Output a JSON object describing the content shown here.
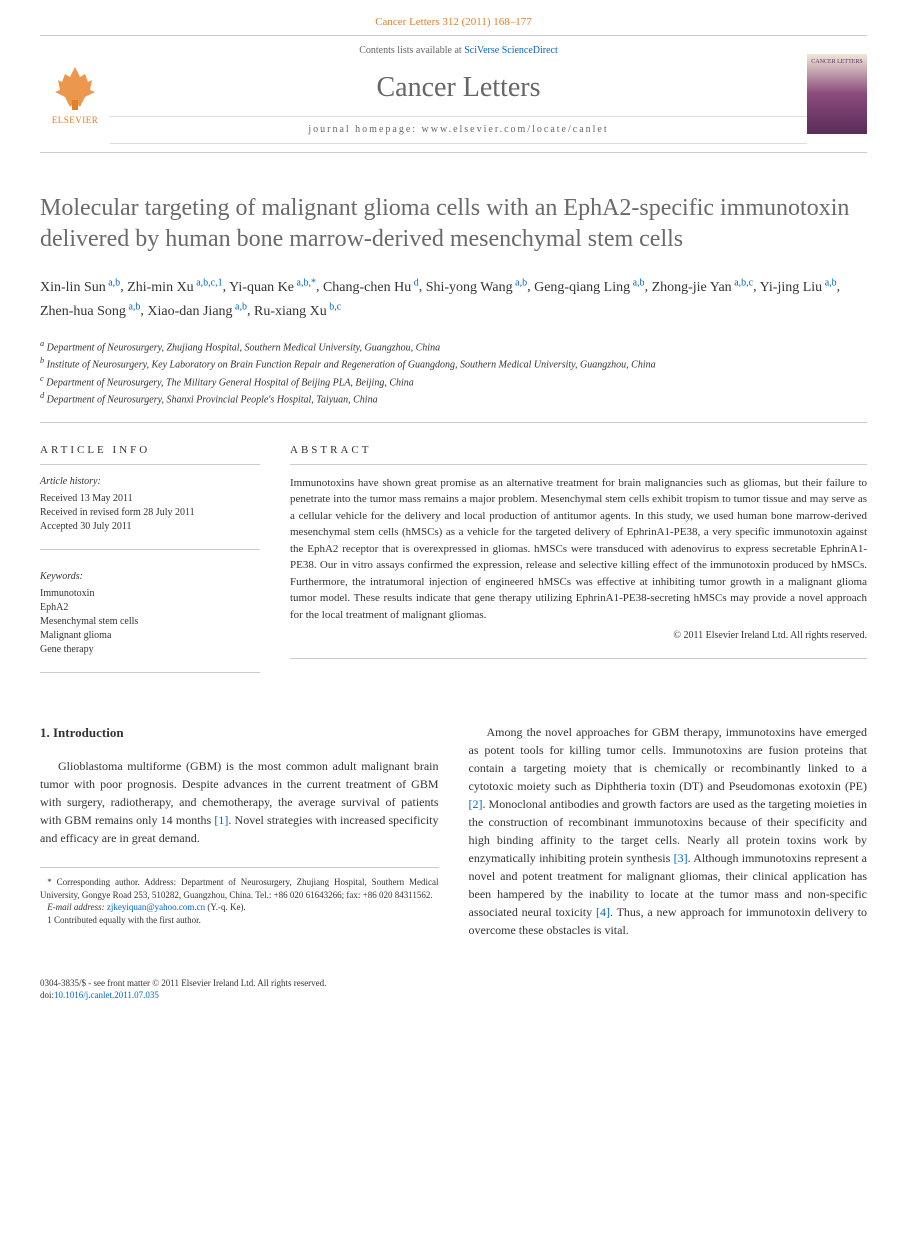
{
  "header": {
    "citation": "Cancer Letters 312 (2011) 168–177"
  },
  "contentsBar": {
    "elsevier": "ELSEVIER",
    "contentsLabel": "Contents lists available at ",
    "contentsLink": "SciVerse ScienceDirect",
    "journalName": "Cancer Letters",
    "homepage": "journal homepage: www.elsevier.com/locate/canlet",
    "coverLabel": "CANCER LETTERS"
  },
  "title": "Molecular targeting of malignant glioma cells with an EphA2-specific immunotoxin delivered by human bone marrow-derived mesenchymal stem cells",
  "authors": [
    {
      "name": "Xin-lin Sun",
      "sup": "a,b"
    },
    {
      "name": "Zhi-min Xu",
      "sup": "a,b,c,1"
    },
    {
      "name": "Yi-quan Ke",
      "sup": "a,b,*"
    },
    {
      "name": "Chang-chen Hu",
      "sup": "d"
    },
    {
      "name": "Shi-yong Wang",
      "sup": "a,b"
    },
    {
      "name": "Geng-qiang Ling",
      "sup": "a,b"
    },
    {
      "name": "Zhong-jie Yan",
      "sup": "a,b,c"
    },
    {
      "name": "Yi-jing Liu",
      "sup": "a,b"
    },
    {
      "name": "Zhen-hua Song",
      "sup": "a,b"
    },
    {
      "name": "Xiao-dan Jiang",
      "sup": "a,b"
    },
    {
      "name": "Ru-xiang Xu",
      "sup": "b,c"
    }
  ],
  "affiliations": [
    {
      "key": "a",
      "text": "Department of Neurosurgery, Zhujiang Hospital, Southern Medical University, Guangzhou, China"
    },
    {
      "key": "b",
      "text": "Institute of Neurosurgery, Key Laboratory on Brain Function Repair and Regeneration of Guangdong, Southern Medical University, Guangzhou, China"
    },
    {
      "key": "c",
      "text": "Department of Neurosurgery, The Military General Hospital of Beijing PLA, Beijing, China"
    },
    {
      "key": "d",
      "text": "Department of Neurosurgery, Shanxi Provincial People's Hospital, Taiyuan, China"
    }
  ],
  "articleInfo": {
    "heading": "ARTICLE INFO",
    "historyLabel": "Article history:",
    "received": "Received 13 May 2011",
    "revised": "Received in revised form 28 July 2011",
    "accepted": "Accepted 30 July 2011",
    "keywordsLabel": "Keywords:",
    "keywords": [
      "Immunotoxin",
      "EphA2",
      "Mesenchymal stem cells",
      "Malignant glioma",
      "Gene therapy"
    ]
  },
  "abstract": {
    "heading": "ABSTRACT",
    "text": "Immunotoxins have shown great promise as an alternative treatment for brain malignancies such as gliomas, but their failure to penetrate into the tumor mass remains a major problem. Mesenchymal stem cells exhibit tropism to tumor tissue and may serve as a cellular vehicle for the delivery and local production of antitumor agents. In this study, we used human bone marrow-derived mesenchymal stem cells (hMSCs) as a vehicle for the targeted delivery of EphrinA1-PE38, a very specific immunotoxin against the EphA2 receptor that is overexpressed in gliomas. hMSCs were transduced with adenovirus to express secretable EphrinA1-PE38. Our in vitro assays confirmed the expression, release and selective killing effect of the immunotoxin produced by hMSCs. Furthermore, the intratumoral injection of engineered hMSCs was effective at inhibiting tumor growth in a malignant glioma tumor model. These results indicate that gene therapy utilizing EphrinA1-PE38-secreting hMSCs may provide a novel approach for the local treatment of malignant gliomas.",
    "copyright": "© 2011 Elsevier Ireland Ltd. All rights reserved."
  },
  "body": {
    "sectionHeading": "1. Introduction",
    "col1": "Glioblastoma multiforme (GBM) is the most common adult malignant brain tumor with poor prognosis. Despite advances in the current treatment of GBM with surgery, radiotherapy, and chemotherapy, the average survival of patients with GBM remains only 14 months [1]. Novel strategies with increased specificity and efficacy are in great demand.",
    "col2": "Among the novel approaches for GBM therapy, immunotoxins have emerged as potent tools for killing tumor cells. Immunotoxins are fusion proteins that contain a targeting moiety that is chemically or recombinantly linked to a cytotoxic moiety such as Diphtheria toxin (DT) and Pseudomonas exotoxin (PE) [2]. Monoclonal antibodies and growth factors are used as the targeting moieties in the construction of recombinant immunotoxins because of their specificity and high binding affinity to the target cells. Nearly all protein toxins work by enzymatically inhibiting protein synthesis [3]. Although immunotoxins represent a novel and potent treatment for malignant gliomas, their clinical application has been hampered by the inability to locate at the tumor mass and non-specific associated neural toxicity [4]. Thus, a new approach for immunotoxin delivery to overcome these obstacles is vital.",
    "ref1": "[1]",
    "ref2": "[2]",
    "ref3": "[3]",
    "ref4": "[4]"
  },
  "footnotes": {
    "corresponding": "* Corresponding author. Address: Department of Neurosurgery, Zhujiang Hospital, Southern Medical University, Gongye Road 253, 510282, Guangzhou, China. Tel.: +86 020 61643266; fax: +86 020 84311562.",
    "emailLabel": "E-mail address: ",
    "email": "zjkeyiquan@yahoo.com.cn",
    "emailSuffix": " (Y.-q. Ke).",
    "equal": "1 Contributed equally with the first author."
  },
  "footer": {
    "line1": "0304-3835/$ - see front matter © 2011 Elsevier Ireland Ltd. All rights reserved.",
    "doiLabel": "doi:",
    "doi": "10.1016/j.canlet.2011.07.035"
  },
  "colors": {
    "accent": "#e67e22",
    "link": "#0066cc",
    "text": "#333333",
    "heading": "#6a6a6a",
    "border": "#cccccc"
  }
}
